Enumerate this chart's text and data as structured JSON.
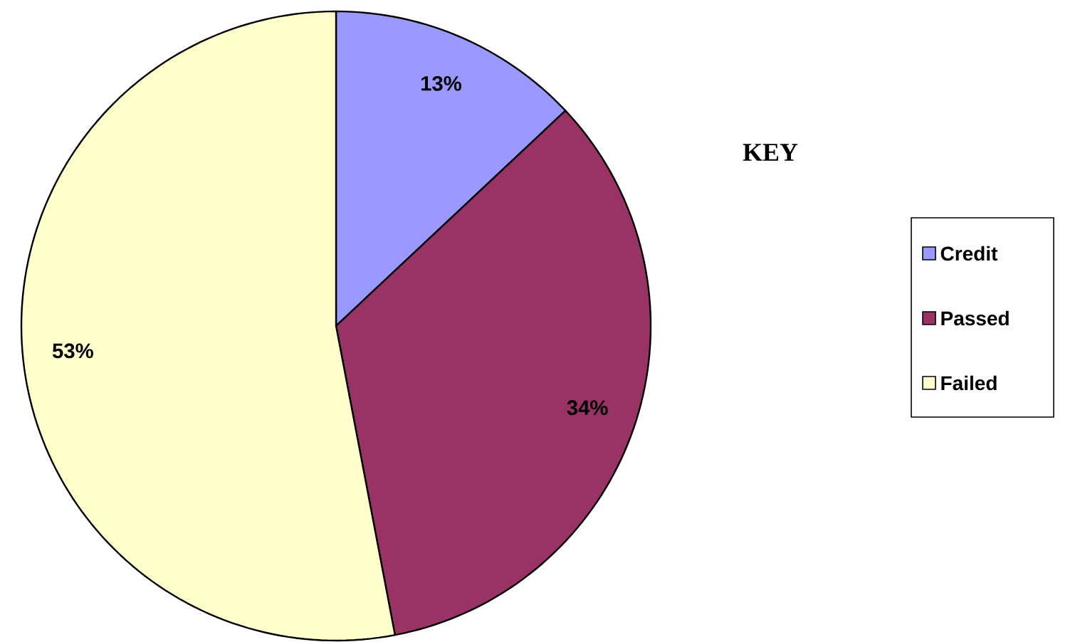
{
  "chart_data": {
    "type": "pie",
    "legend_title": "KEY",
    "legend": "right",
    "data_labels": true,
    "value_labels": [
      "13%",
      "34%",
      "53%"
    ],
    "categories": [
      "Credit",
      "Passed",
      "Failed"
    ],
    "values": [
      13,
      34,
      53
    ],
    "colors": [
      "#9999ff",
      "#993366",
      "#ffffcc"
    ]
  }
}
